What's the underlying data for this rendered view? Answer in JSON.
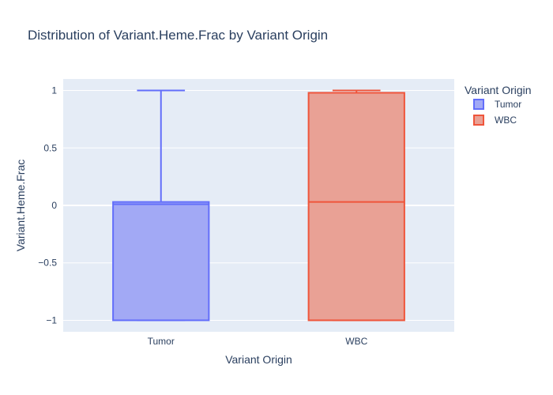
{
  "chart_data": {
    "type": "box",
    "title": "Distribution of Variant.Heme.Frac by Variant Origin",
    "xlabel": "Variant Origin",
    "ylabel": "Variant.Heme.Frac",
    "categories": [
      "Tumor",
      "WBC"
    ],
    "ylim": [
      -1.1,
      1.1
    ],
    "yticks": [
      1,
      0.5,
      0,
      -0.5,
      -1
    ],
    "ytick_labels": [
      "1",
      "0.5",
      "0",
      "−0.5",
      "−1"
    ],
    "grid": true,
    "legend": {
      "title": "Variant Origin",
      "position": "top-right",
      "entries": [
        "Tumor",
        "WBC"
      ]
    },
    "series": [
      {
        "name": "Tumor",
        "color": "#636efa",
        "fill": "#a2a9f5",
        "min": -1,
        "q1": -1,
        "median": 0.01,
        "q3": 0.03,
        "max": 1
      },
      {
        "name": "WBC",
        "color": "#ef553b",
        "fill": "#e9a195",
        "min": -1,
        "q1": -1,
        "median": 0.03,
        "q3": 0.98,
        "max": 1
      }
    ]
  }
}
